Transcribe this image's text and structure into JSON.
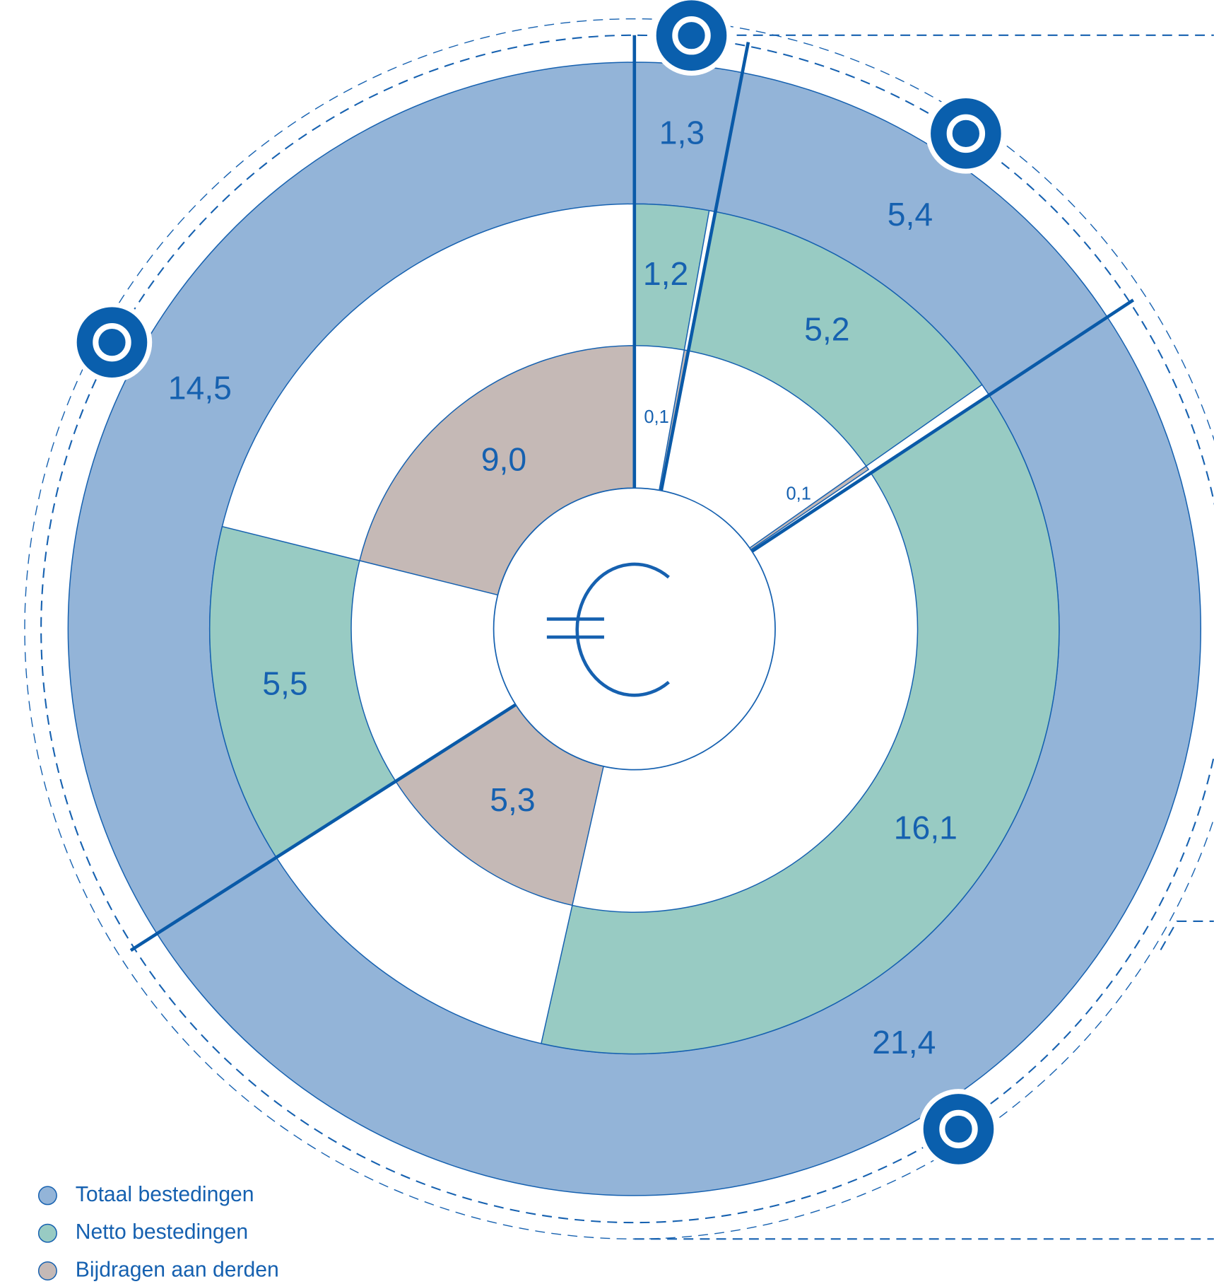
{
  "chart_data": {
    "type": "nested-donut",
    "series": [
      {
        "name": "Totaal bestedingen",
        "color": "#93b4d8",
        "values": [
          1.3,
          5.4,
          21.4,
          14.5
        ],
        "value_labels": [
          "1,3",
          "5,4",
          "21,4",
          "14,5"
        ]
      },
      {
        "name": "Netto bestedingen",
        "color": "#98cbc3",
        "values": [
          1.2,
          5.2,
          16.1,
          5.5
        ],
        "value_labels": [
          "1,2",
          "5,2",
          "16,1",
          "5,5"
        ]
      },
      {
        "name": "Bijdragen aan derden",
        "color": "#c5b9b6",
        "values": [
          0.1,
          0.1,
          5.3,
          9.0
        ],
        "value_labels": [
          "0,1",
          "0,1",
          "5,3",
          "9,0"
        ]
      }
    ]
  }
}
